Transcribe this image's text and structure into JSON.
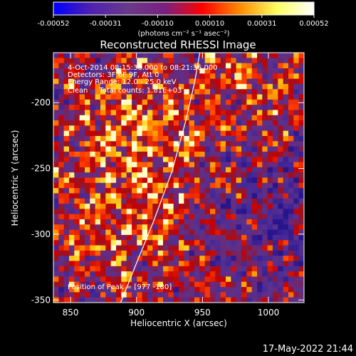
{
  "colorbar": {
    "ticks": [
      "-0.00052",
      "-0.00031",
      "-0.00010",
      "0.00010",
      "0.00031",
      "0.00052"
    ],
    "unit_label": "(photons cm⁻² s⁻¹ asec⁻²)",
    "colors": [
      "#0000ff",
      "#5020b0",
      "#6a3a8a",
      "#7a2080",
      "#ff0000",
      "#ff8a00",
      "#ffff60",
      "#ffffff"
    ]
  },
  "chart_data": {
    "type": "heatmap",
    "title": "Reconstructed RHESSI Image",
    "xlabel": "Heliocentric X (arcsec)",
    "ylabel": "Heliocentric Y (arcsec)",
    "xlim": [
      837,
      1027
    ],
    "ylim": [
      -352,
      -162
    ],
    "x_ticks": [
      850,
      900,
      950,
      1000
    ],
    "y_ticks": [
      -200,
      -250,
      -300,
      -350
    ],
    "grid": false,
    "annotations": [
      "4-Oct-2014 08:15:36.000 to 08:21:36.000",
      "Detectors: 3F 6F 9F, Att 0",
      "Energy Range: 12.0 - 25.0 keV",
      "Clean     Total counts: 1.81E+03"
    ],
    "peak_label": "Position of Peak = [977 -180]",
    "peak": [
      977,
      -180
    ],
    "limb": [
      [
        888,
        -352
      ],
      [
        900,
        -322
      ],
      [
        913,
        -290
      ],
      [
        927,
        -252
      ],
      [
        937,
        -215
      ],
      [
        944,
        -185
      ],
      [
        948,
        -162
      ]
    ],
    "value_range": [
      -0.00052,
      0.00052
    ]
  },
  "footer": {
    "timestamp": "17-May-2022 21:44"
  }
}
